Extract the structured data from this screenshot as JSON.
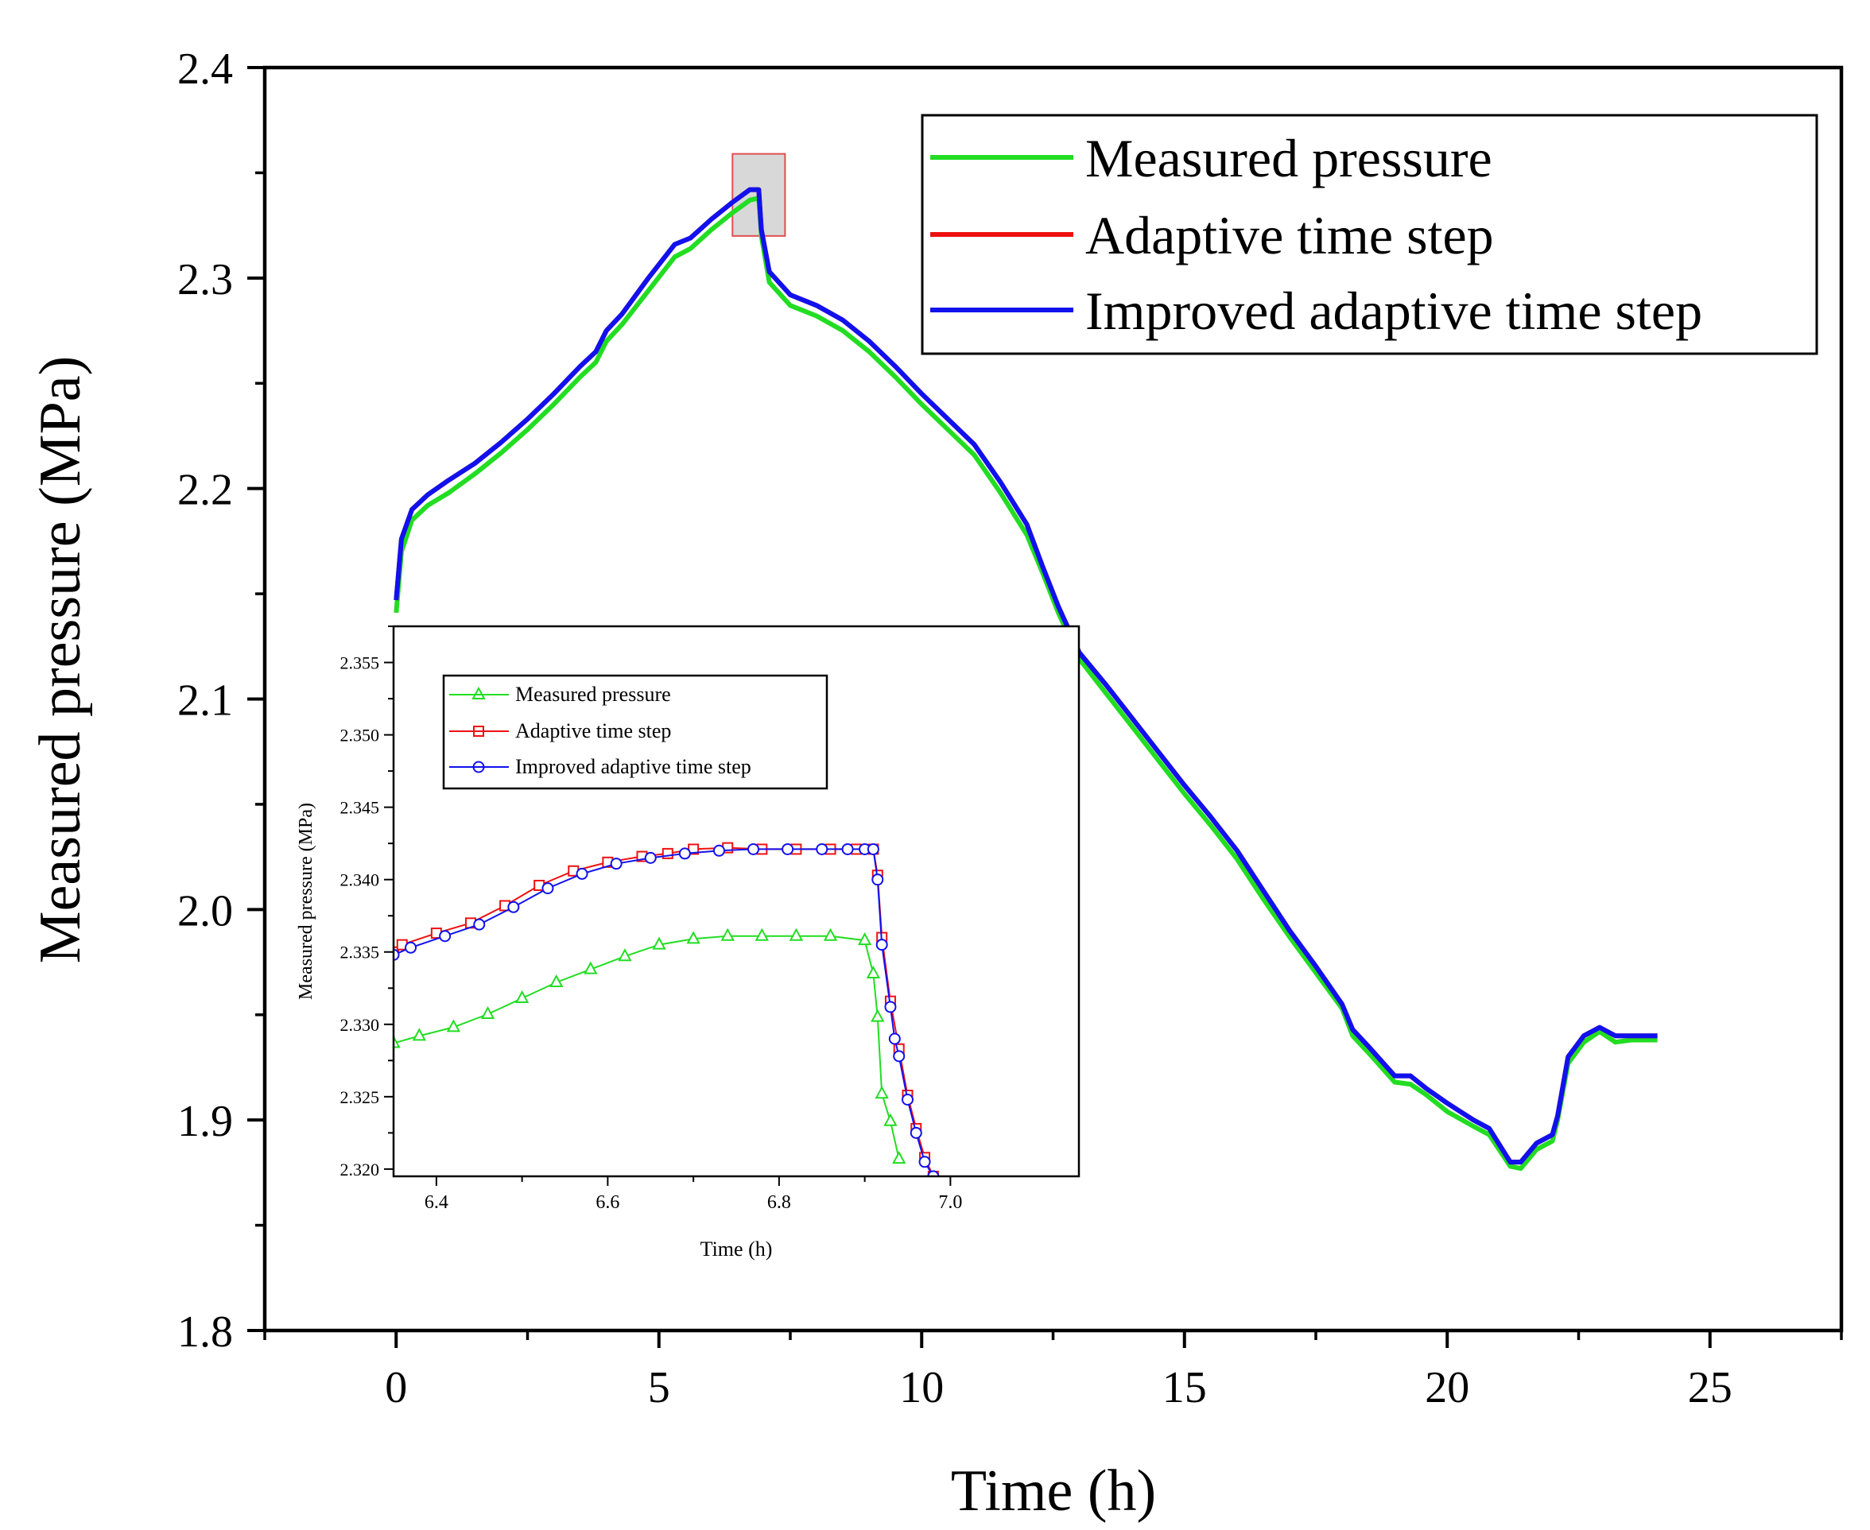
{
  "chart_data": [
    {
      "type": "line",
      "title": "",
      "xlabel": "Time (h)",
      "ylabel": "Measured pressure (MPa)",
      "xlim": [
        -2.5,
        27.5
      ],
      "ylim": [
        1.8,
        2.4
      ],
      "xticks": [
        "0",
        "5",
        "10",
        "15",
        "20",
        "25"
      ],
      "yticks": [
        "1.8",
        "1.9",
        "2.0",
        "2.1",
        "2.2",
        "2.3",
        "2.4"
      ],
      "legend_position": "top-right",
      "series": [
        {
          "name": "Measured pressure",
          "color": "#22dd22",
          "x": [
            0,
            0.1,
            0.3,
            0.6,
            1,
            1.5,
            2,
            2.5,
            3,
            3.5,
            3.8,
            4,
            4.3,
            4.8,
            5.3,
            5.6,
            6,
            6.4,
            6.73,
            6.9,
            6.95,
            7.1,
            7.5,
            8,
            8.5,
            9,
            9.5,
            10,
            10.5,
            11,
            11.5,
            12,
            12.3,
            12.6,
            13,
            13.5,
            14,
            14.5,
            15,
            15.5,
            16,
            16.5,
            17,
            17.5,
            18,
            18.2,
            18.5,
            19,
            19.3,
            19.6,
            20,
            20.5,
            20.8,
            21.2,
            21.4,
            21.7,
            22,
            22.1,
            22.3,
            22.6,
            22.9,
            23.2,
            23.5,
            24
          ],
          "values": [
            2.141,
            2.17,
            2.185,
            2.192,
            2.198,
            2.207,
            2.217,
            2.228,
            2.24,
            2.253,
            2.26,
            2.27,
            2.278,
            2.294,
            2.31,
            2.314,
            2.323,
            2.331,
            2.337,
            2.338,
            2.32,
            2.298,
            2.287,
            2.282,
            2.275,
            2.265,
            2.253,
            2.24,
            2.228,
            2.216,
            2.198,
            2.178,
            2.16,
            2.141,
            2.119,
            2.103,
            2.087,
            2.071,
            2.055,
            2.04,
            2.024,
            2.005,
            1.987,
            1.97,
            1.953,
            1.94,
            1.932,
            1.918,
            1.917,
            1.912,
            1.904,
            1.897,
            1.893,
            1.878,
            1.877,
            1.886,
            1.89,
            1.9,
            1.927,
            1.937,
            1.942,
            1.937,
            1.938,
            1.938
          ]
        },
        {
          "name": "Adaptive time step",
          "color": "#ee1111",
          "x": [
            0,
            0.1,
            0.3,
            0.6,
            1,
            1.5,
            2,
            2.5,
            3,
            3.5,
            3.8,
            4,
            4.3,
            4.8,
            5.3,
            5.6,
            6,
            6.4,
            6.73,
            6.9,
            6.95,
            7.1,
            7.5,
            8,
            8.5,
            9,
            9.5,
            10,
            10.5,
            11,
            11.5,
            12,
            12.3,
            12.6,
            13,
            13.5,
            14,
            14.5,
            15,
            15.5,
            16,
            16.5,
            17,
            17.5,
            18,
            18.2,
            18.5,
            19,
            19.3,
            19.6,
            20,
            20.5,
            20.8,
            21.2,
            21.4,
            21.7,
            22,
            22.1,
            22.3,
            22.6,
            22.9,
            23.2,
            23.5,
            24
          ],
          "values": [
            2.147,
            2.176,
            2.19,
            2.197,
            2.204,
            2.212,
            2.222,
            2.233,
            2.245,
            2.258,
            2.265,
            2.275,
            2.283,
            2.3,
            2.316,
            2.319,
            2.328,
            2.336,
            2.342,
            2.342,
            2.323,
            2.303,
            2.292,
            2.287,
            2.28,
            2.27,
            2.258,
            2.245,
            2.233,
            2.221,
            2.203,
            2.183,
            2.163,
            2.144,
            2.122,
            2.107,
            2.091,
            2.075,
            2.059,
            2.044,
            2.028,
            2.009,
            1.99,
            1.973,
            1.955,
            1.943,
            1.935,
            1.921,
            1.921,
            1.915,
            1.908,
            1.9,
            1.896,
            1.88,
            1.88,
            1.889,
            1.893,
            1.902,
            1.93,
            1.94,
            1.944,
            1.94,
            1.94,
            1.94
          ]
        },
        {
          "name": "Improved adaptive time step",
          "color": "#1111ee",
          "x": [
            0,
            0.1,
            0.3,
            0.6,
            1,
            1.5,
            2,
            2.5,
            3,
            3.5,
            3.8,
            4,
            4.3,
            4.8,
            5.3,
            5.6,
            6,
            6.4,
            6.73,
            6.9,
            6.95,
            7.1,
            7.5,
            8,
            8.5,
            9,
            9.5,
            10,
            10.5,
            11,
            11.5,
            12,
            12.3,
            12.6,
            13,
            13.5,
            14,
            14.5,
            15,
            15.5,
            16,
            16.5,
            17,
            17.5,
            18,
            18.2,
            18.5,
            19,
            19.3,
            19.6,
            20,
            20.5,
            20.8,
            21.2,
            21.4,
            21.7,
            22,
            22.1,
            22.3,
            22.6,
            22.9,
            23.2,
            23.5,
            24
          ],
          "values": [
            2.147,
            2.176,
            2.19,
            2.197,
            2.204,
            2.212,
            2.222,
            2.233,
            2.245,
            2.258,
            2.265,
            2.275,
            2.283,
            2.3,
            2.316,
            2.319,
            2.328,
            2.336,
            2.342,
            2.342,
            2.323,
            2.303,
            2.292,
            2.287,
            2.28,
            2.27,
            2.258,
            2.245,
            2.233,
            2.221,
            2.203,
            2.183,
            2.163,
            2.144,
            2.122,
            2.107,
            2.091,
            2.075,
            2.059,
            2.044,
            2.028,
            2.009,
            1.99,
            1.973,
            1.955,
            1.943,
            1.935,
            1.921,
            1.921,
            1.915,
            1.908,
            1.9,
            1.896,
            1.88,
            1.88,
            1.889,
            1.893,
            1.902,
            1.93,
            1.94,
            1.944,
            1.94,
            1.94,
            1.94
          ]
        }
      ],
      "highlight_region": {
        "x": [
          6.4,
          7.4
        ],
        "y": [
          2.32,
          2.359
        ]
      }
    },
    {
      "type": "line",
      "title": "",
      "xlabel": "Time (h)",
      "ylabel": "Measured pressure (MPa)",
      "xlim": [
        6.35,
        7.15
      ],
      "ylim": [
        2.3195,
        2.3575
      ],
      "xticks": [
        "6.4",
        "6.6",
        "6.8",
        "7.0"
      ],
      "yticks": [
        "2.320",
        "2.325",
        "2.330",
        "2.335",
        "2.340",
        "2.345",
        "2.350",
        "2.355"
      ],
      "legend_position": "top-left",
      "series": [
        {
          "name": "Measured pressure",
          "color": "#22dd22",
          "marker": "triangle",
          "x": [
            6.35,
            6.38,
            6.42,
            6.46,
            6.5,
            6.54,
            6.58,
            6.62,
            6.66,
            6.7,
            6.74,
            6.78,
            6.82,
            6.86,
            6.9,
            6.91,
            6.915,
            6.92,
            6.93,
            6.94
          ],
          "values": [
            2.3287,
            2.3292,
            2.3298,
            2.3307,
            2.3318,
            2.3329,
            2.3338,
            2.3347,
            2.3355,
            2.3359,
            2.3361,
            2.3361,
            2.3361,
            2.3361,
            2.3358,
            2.3335,
            2.3305,
            2.3252,
            2.3233,
            2.3207
          ]
        },
        {
          "name": "Adaptive time step",
          "color": "#ee1111",
          "marker": "square",
          "x": [
            6.35,
            6.36,
            6.4,
            6.44,
            6.48,
            6.52,
            6.56,
            6.6,
            6.64,
            6.67,
            6.7,
            6.74,
            6.78,
            6.82,
            6.86,
            6.89,
            6.91,
            6.915,
            6.92,
            6.93,
            6.94,
            6.95,
            6.96,
            6.97,
            6.98
          ],
          "values": [
            2.335,
            2.3355,
            2.3363,
            2.337,
            2.3382,
            2.3396,
            2.3406,
            2.3412,
            2.3416,
            2.3418,
            2.3421,
            2.3422,
            2.3421,
            2.3421,
            2.3421,
            2.3421,
            2.3421,
            2.3403,
            2.336,
            2.3316,
            2.3283,
            2.3251,
            2.3228,
            2.3208,
            2.3195
          ]
        },
        {
          "name": "Improved adaptive time step",
          "color": "#1111ee",
          "marker": "circle",
          "x": [
            6.35,
            6.37,
            6.41,
            6.45,
            6.49,
            6.53,
            6.57,
            6.61,
            6.65,
            6.69,
            6.73,
            6.77,
            6.81,
            6.85,
            6.88,
            6.9,
            6.91,
            6.915,
            6.92,
            6.93,
            6.935,
            6.94,
            6.95,
            6.96,
            6.97,
            6.98
          ],
          "values": [
            2.3348,
            2.3353,
            2.3361,
            2.3369,
            2.3381,
            2.3394,
            2.3404,
            2.3411,
            2.3415,
            2.3418,
            2.342,
            2.3421,
            2.3421,
            2.3421,
            2.3421,
            2.3421,
            2.3421,
            2.34,
            2.3355,
            2.3312,
            2.329,
            2.3278,
            2.3248,
            2.3225,
            2.3205,
            2.3195
          ]
        }
      ]
    }
  ]
}
